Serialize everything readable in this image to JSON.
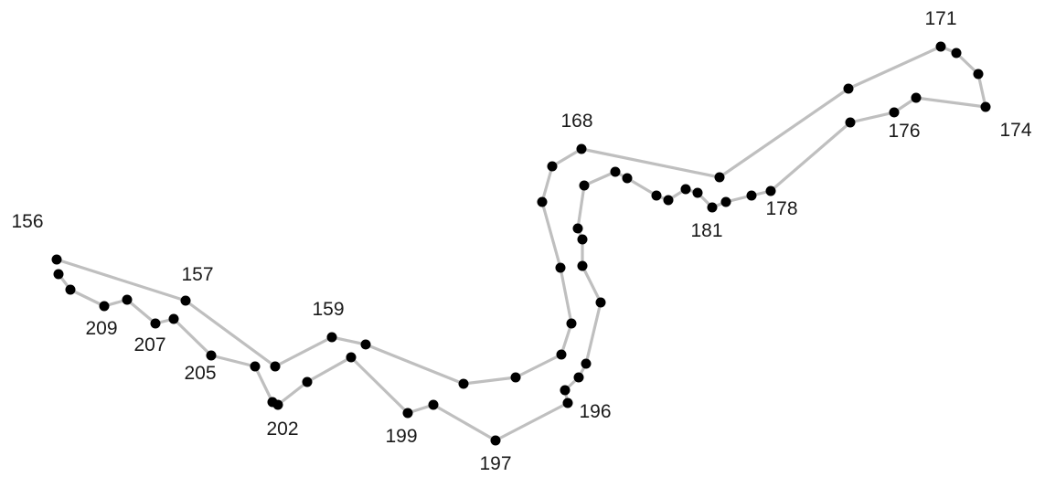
{
  "colors": {
    "line": "#bfbfbf",
    "node": "#000000",
    "label": "#1a1a1a",
    "background": "#ffffff"
  },
  "labels": {
    "n156": "156",
    "n157": "157",
    "n159": "159",
    "n168": "168",
    "n171": "171",
    "n174": "174",
    "n176": "176",
    "n178": "178",
    "n181": "181",
    "n196": "196",
    "n197": "197",
    "n199": "199",
    "n202": "202",
    "n205": "205",
    "n207": "207",
    "n209": "209"
  }
}
